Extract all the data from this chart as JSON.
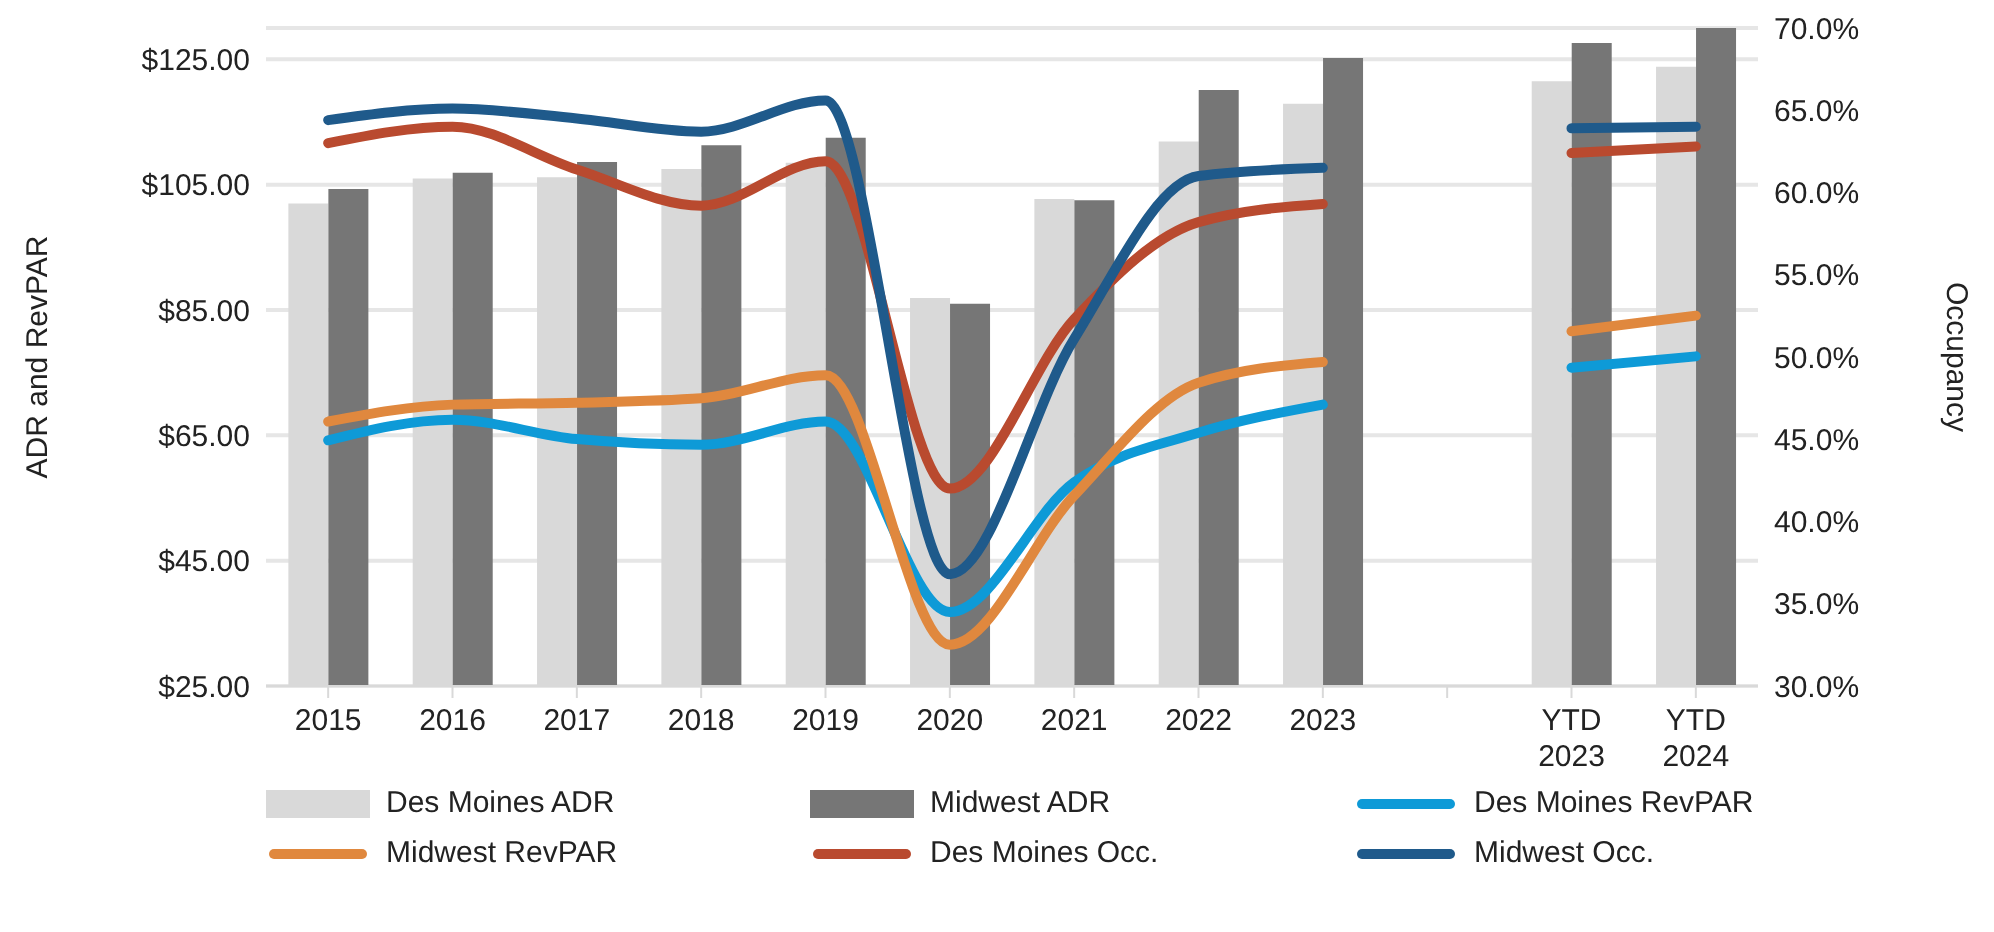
{
  "chart_data": {
    "type": "bar",
    "ylabel": "ADR and RevPAR",
    "y2label": "Occupancy",
    "categories": [
      "2015",
      "2016",
      "2017",
      "2018",
      "2019",
      "2020",
      "2021",
      "2022",
      "2023",
      null,
      "YTD 2023",
      "YTD 2024"
    ],
    "series": [
      {
        "name": "Des Moines ADR",
        "color": "#d9d9d9",
        "values": [
          102,
          106,
          106.2,
          107.5,
          108.5,
          86.9,
          102.7,
          111.9,
          117.9,
          null,
          121.5,
          123.8
        ]
      },
      {
        "name": "Midwest ADR",
        "color": "#767676",
        "values": [
          104.3,
          106.9,
          108.6,
          111.3,
          112.5,
          86,
          102.5,
          120.1,
          125.2,
          null,
          127.6,
          130
        ]
      },
      {
        "name": "Des Moines RevPAR",
        "type": "line",
        "color": "#0e9ad7",
        "values": [
          64.2,
          67.5,
          64.4,
          63.5,
          67.2,
          36.8,
          57.5,
          65.4,
          69.9,
          null,
          75.8,
          77.6
        ]
      },
      {
        "name": "Midwest RevPAR",
        "type": "line",
        "color": "#e0883e",
        "values": [
          67.2,
          69.9,
          70.2,
          70.9,
          74.6,
          31.6,
          55.4,
          73.4,
          76.7,
          null,
          81.6,
          84.1
        ]
      },
      {
        "name": "Des Moines Occ.",
        "type": "line",
        "axis": "y2",
        "color": "#b94a2f",
        "values": [
          63,
          64,
          61.4,
          59.2,
          61.9,
          42,
          52.3,
          58.2,
          59.3,
          null,
          62.4,
          62.8
        ]
      },
      {
        "name": "Midwest Occ.",
        "type": "line",
        "axis": "y2",
        "color": "#1f5a8b",
        "values": [
          64.4,
          65.1,
          64.5,
          63.7,
          65.6,
          36.8,
          51.1,
          61,
          61.5,
          null,
          63.9,
          64
        ]
      }
    ],
    "ylim": [
      25,
      130
    ],
    "yticks": [
      {
        "value": 25,
        "label": "$25.00"
      },
      {
        "value": 45,
        "label": "$45.00"
      },
      {
        "value": 65,
        "label": "$65.00"
      },
      {
        "value": 85,
        "label": "$85.00"
      },
      {
        "value": 105,
        "label": "$105.00"
      },
      {
        "value": 125,
        "label": "$125.00"
      }
    ],
    "y2lim": [
      30,
      70
    ],
    "y2ticks": [
      {
        "value": 30,
        "label": "30.0%"
      },
      {
        "value": 35,
        "label": "35.0%"
      },
      {
        "value": 40,
        "label": "40.0%"
      },
      {
        "value": 45,
        "label": "45.0%"
      },
      {
        "value": 50,
        "label": "50.0%"
      },
      {
        "value": 55,
        "label": "55.0%"
      },
      {
        "value": 60,
        "label": "60.0%"
      },
      {
        "value": 65,
        "label": "65.0%"
      },
      {
        "value": 70,
        "label": "70.0%"
      }
    ],
    "grid": "y",
    "legend": "bottom",
    "marker": "none",
    "line_style": "solid"
  }
}
